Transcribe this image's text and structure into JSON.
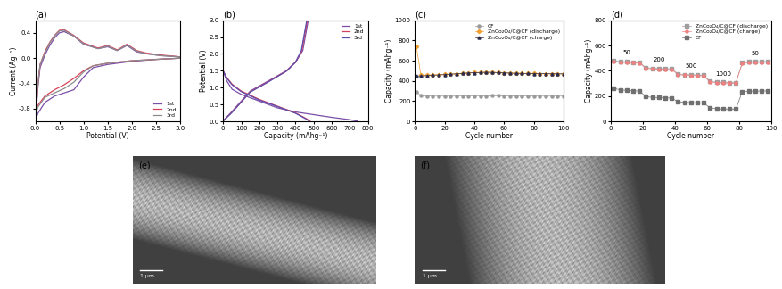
{
  "chart_data": [
    {
      "type": "line",
      "title": "(a)",
      "x_label": "Potential (V)",
      "y_label": "Current (Ag⁻¹)",
      "xlim": [
        0.0,
        3.0
      ],
      "ylim": [
        -1.0,
        0.6
      ],
      "xticks": [
        {
          "value": 0.0,
          "label": "0.0"
        },
        {
          "value": 0.5,
          "label": "0.5"
        },
        {
          "value": 1.0,
          "label": "1.0"
        },
        {
          "value": 1.5,
          "label": "1.5"
        },
        {
          "value": 2.0,
          "label": "2.0"
        },
        {
          "value": 2.5,
          "label": "2.5"
        },
        {
          "value": 3.0,
          "label": "3.0"
        }
      ],
      "yticks": [
        {
          "value": -0.8,
          "label": "-0.8"
        },
        {
          "value": -0.4,
          "label": "-0.4"
        },
        {
          "value": 0.0,
          "label": "0.0"
        },
        {
          "value": 0.4,
          "label": "0.4"
        }
      ],
      "legend": "lower right",
      "series": [
        {
          "name": "1st",
          "color": "#7b4fa8",
          "x": [
            3.0,
            2.5,
            2.0,
            1.5,
            1.2,
            1.0,
            0.8,
            0.6,
            0.4,
            0.2,
            0.05,
            0.01,
            0.05,
            0.1,
            0.2,
            0.3,
            0.4,
            0.5,
            0.6,
            0.8,
            1.0,
            1.3,
            1.5,
            1.7,
            1.9,
            2.1,
            2.3,
            2.6,
            3.0
          ],
          "values": [
            0.0,
            -0.02,
            -0.05,
            -0.1,
            -0.15,
            -0.3,
            -0.5,
            -0.55,
            -0.6,
            -0.7,
            -0.88,
            -1.0,
            -0.5,
            -0.15,
            0.05,
            0.2,
            0.32,
            0.4,
            0.42,
            0.35,
            0.22,
            0.15,
            0.18,
            0.12,
            0.2,
            0.1,
            0.07,
            0.04,
            0.02
          ]
        },
        {
          "name": "2nd",
          "color": "#d9415a",
          "x": [
            3.0,
            2.5,
            2.0,
            1.5,
            1.2,
            1.0,
            0.8,
            0.6,
            0.4,
            0.2,
            0.05,
            0.01,
            0.05,
            0.1,
            0.2,
            0.3,
            0.4,
            0.5,
            0.6,
            0.8,
            1.0,
            1.3,
            1.5,
            1.7,
            1.9,
            2.1,
            2.3,
            2.6,
            3.0
          ],
          "values": [
            0.0,
            -0.02,
            -0.04,
            -0.08,
            -0.12,
            -0.2,
            -0.32,
            -0.42,
            -0.5,
            -0.6,
            -0.75,
            -0.9,
            -0.45,
            -0.1,
            0.1,
            0.25,
            0.36,
            0.44,
            0.45,
            0.36,
            0.24,
            0.16,
            0.2,
            0.13,
            0.22,
            0.12,
            0.08,
            0.05,
            0.02
          ]
        },
        {
          "name": "3rd",
          "color": "#8c8c8c",
          "x": [
            3.0,
            2.5,
            2.0,
            1.5,
            1.2,
            1.0,
            0.8,
            0.6,
            0.4,
            0.2,
            0.05,
            0.01,
            0.05,
            0.1,
            0.2,
            0.3,
            0.4,
            0.5,
            0.6,
            0.8,
            1.0,
            1.3,
            1.5,
            1.7,
            1.9,
            2.1,
            2.3,
            2.6,
            3.0
          ],
          "values": [
            0.0,
            -0.02,
            -0.04,
            -0.08,
            -0.12,
            -0.22,
            -0.38,
            -0.48,
            -0.55,
            -0.62,
            -0.78,
            -0.92,
            -0.45,
            -0.1,
            0.08,
            0.24,
            0.35,
            0.43,
            0.44,
            0.35,
            0.23,
            0.15,
            0.19,
            0.12,
            0.21,
            0.11,
            0.07,
            0.04,
            0.02
          ]
        }
      ]
    },
    {
      "type": "line",
      "title": "(b)",
      "x_label": "Capacity (mAhg⁻¹)",
      "y_label": "Potential (V)",
      "xlim": [
        0,
        800
      ],
      "ylim": [
        0.0,
        3.0
      ],
      "xticks": [
        0,
        100,
        200,
        300,
        400,
        500,
        600,
        700,
        800
      ],
      "yticks": [
        {
          "value": 0.0,
          "label": "0.0"
        },
        {
          "value": 0.5,
          "label": "0.5"
        },
        {
          "value": 1.0,
          "label": "1.0"
        },
        {
          "value": 1.5,
          "label": "1.5"
        },
        {
          "value": 2.0,
          "label": "2.0"
        },
        {
          "value": 2.5,
          "label": "2.5"
        },
        {
          "value": 3.0,
          "label": "3.0"
        }
      ],
      "legend": "upper right",
      "series": [
        {
          "name": "1st",
          "color": "#7b4fa8",
          "x": [
            0,
            20,
            50,
            100,
            150,
            200,
            250,
            300,
            400,
            500,
            600,
            700,
            740,
            null,
            0,
            50,
            100,
            150,
            200,
            250,
            300,
            350,
            400,
            440,
            460,
            470
          ],
          "values": [
            1.5,
            1.2,
            0.95,
            0.8,
            0.7,
            0.6,
            0.5,
            0.4,
            0.28,
            0.2,
            0.12,
            0.05,
            0.01,
            null,
            0.01,
            0.3,
            0.6,
            0.9,
            1.05,
            1.2,
            1.35,
            1.5,
            1.75,
            2.1,
            2.7,
            3.0
          ]
        },
        {
          "name": "2nd",
          "color": "#d9415a",
          "x": [
            0,
            20,
            50,
            100,
            200,
            300,
            400,
            460,
            480,
            null,
            0,
            50,
            100,
            150,
            200,
            250,
            300,
            350,
            400,
            435,
            455,
            465
          ],
          "values": [
            1.5,
            1.3,
            1.1,
            0.9,
            0.65,
            0.45,
            0.25,
            0.08,
            0.01,
            null,
            0.01,
            0.28,
            0.58,
            0.88,
            1.03,
            1.18,
            1.34,
            1.5,
            1.76,
            2.1,
            2.7,
            3.0
          ]
        },
        {
          "name": "3rd",
          "color": "#5a4fb0",
          "x": [
            0,
            20,
            50,
            100,
            200,
            300,
            400,
            455,
            475,
            null,
            0,
            50,
            100,
            150,
            200,
            250,
            300,
            350,
            400,
            432,
            452,
            462
          ],
          "values": [
            1.5,
            1.28,
            1.08,
            0.88,
            0.63,
            0.44,
            0.24,
            0.08,
            0.01,
            null,
            0.01,
            0.27,
            0.57,
            0.87,
            1.02,
            1.17,
            1.33,
            1.49,
            1.76,
            2.1,
            2.7,
            3.0
          ]
        }
      ]
    },
    {
      "type": "line",
      "title": "(c)",
      "x_label": "Cycle number",
      "y_label": "Capacity (mAhg⁻¹)",
      "xlim": [
        0,
        100
      ],
      "ylim": [
        0,
        1000
      ],
      "xticks": [
        0,
        20,
        40,
        60,
        80,
        100
      ],
      "yticks": [
        0,
        200,
        400,
        600,
        800,
        1000
      ],
      "legend": "upper right",
      "x": [
        1,
        4,
        8,
        12,
        16,
        20,
        24,
        28,
        32,
        36,
        40,
        44,
        48,
        52,
        56,
        60,
        64,
        68,
        72,
        76,
        80,
        84,
        88,
        92,
        96,
        100
      ],
      "series": [
        {
          "name": "CF",
          "color": "#9a9a9a",
          "marker": "circle",
          "values": [
            290,
            255,
            252,
            250,
            250,
            250,
            250,
            250,
            251,
            251,
            252,
            252,
            252,
            253,
            253,
            252,
            252,
            252,
            251,
            251,
            251,
            250,
            250,
            250,
            250,
            250
          ]
        },
        {
          "name": "ZnCo₂O₄/C@CF (discharge)",
          "color": "#f0a030",
          "marker": "diamond",
          "values": [
            740,
            455,
            458,
            460,
            462,
            465,
            468,
            472,
            476,
            480,
            483,
            485,
            487,
            486,
            484,
            480,
            478,
            476,
            475,
            474,
            473,
            472,
            472,
            471,
            471,
            470
          ]
        },
        {
          "name": "ZnCo₂O₄/C@CF (charge)",
          "color": "#2a2a4a",
          "marker": "triangle",
          "values": [
            450,
            448,
            452,
            456,
            459,
            462,
            466,
            470,
            474,
            478,
            481,
            483,
            485,
            484,
            482,
            479,
            477,
            475,
            474,
            473,
            472,
            471,
            471,
            470,
            470,
            469
          ]
        }
      ]
    },
    {
      "type": "line",
      "title": "(d)",
      "x_label": "Cycle number",
      "y_label": "Capacity (mAhg⁻¹)",
      "xlim": [
        0,
        100
      ],
      "ylim": [
        0,
        800
      ],
      "xticks": [
        0,
        20,
        40,
        60,
        80,
        100
      ],
      "yticks": [
        0,
        200,
        400,
        600,
        800
      ],
      "legend": "upper right",
      "x": [
        2,
        6,
        10,
        14,
        18,
        22,
        26,
        30,
        34,
        38,
        42,
        46,
        50,
        54,
        58,
        62,
        66,
        70,
        74,
        78,
        82,
        86,
        90,
        94,
        98
      ],
      "series": [
        {
          "name": "ZnCo₂O₄/C@CF (discharge)",
          "color": "#9e9e9e",
          "marker": "square",
          "values": [
            480,
            472,
            470,
            468,
            466,
            425,
            420,
            418,
            416,
            415,
            375,
            370,
            368,
            366,
            365,
            315,
            310,
            308,
            307,
            306,
            465,
            470,
            472,
            473,
            474
          ]
        },
        {
          "name": "ZnCo₂O₄/C@CF (charge)",
          "color": "#f08080",
          "marker": "circle",
          "values": [
            475,
            467,
            465,
            463,
            461,
            420,
            415,
            413,
            411,
            410,
            370,
            365,
            363,
            361,
            360,
            310,
            305,
            303,
            302,
            301,
            460,
            465,
            467,
            468,
            469
          ]
        },
        {
          "name": "CF",
          "color": "#707070",
          "marker": "square",
          "values": [
            260,
            250,
            245,
            242,
            240,
            195,
            190,
            188,
            186,
            185,
            155,
            150,
            148,
            147,
            146,
            105,
            100,
            98,
            97,
            96,
            235,
            238,
            240,
            240,
            241
          ]
        }
      ],
      "annotations": [
        {
          "text": "50",
          "x": 10,
          "y": 480
        },
        {
          "text": "200",
          "x": 30,
          "y": 425
        },
        {
          "text": "500",
          "x": 50,
          "y": 375
        },
        {
          "text": "1000",
          "x": 70,
          "y": 315
        },
        {
          "text": "50",
          "x": 90,
          "y": 474
        }
      ]
    }
  ],
  "images": [
    {
      "label": "(e)",
      "scale_bar": "1 μm"
    },
    {
      "label": "(f)",
      "scale_bar": "1 μm"
    }
  ]
}
